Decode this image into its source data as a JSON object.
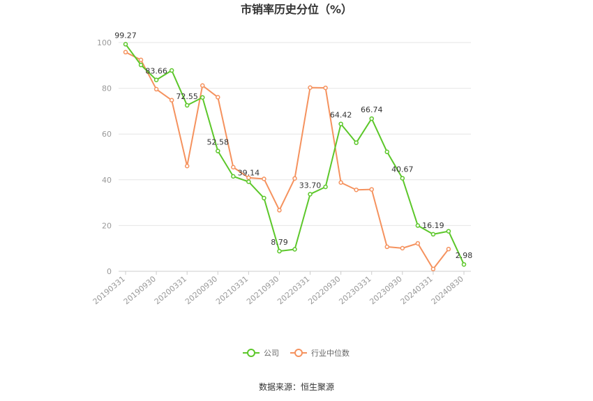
{
  "chart_data": {
    "type": "line",
    "title": "市销率历史分位（%）",
    "xlabel": "",
    "ylabel": "",
    "ylim": [
      0,
      100
    ],
    "yticks": [
      0,
      20,
      40,
      60,
      80,
      100
    ],
    "x": [
      "20190331",
      "20190630",
      "20190930",
      "20191231",
      "20200331",
      "20200630",
      "20200930",
      "20201231",
      "20210331",
      "20210630",
      "20210930",
      "20211231",
      "20220331",
      "20220630",
      "20220930",
      "20221231",
      "20230331",
      "20230630",
      "20230930",
      "20231231",
      "20240331",
      "20240630",
      "20240830"
    ],
    "x_tick_labels": [
      "20190331",
      "20190930",
      "20200331",
      "20200930",
      "20210331",
      "20210930",
      "20220331",
      "20220930",
      "20230331",
      "20230930",
      "20240331",
      "20240830"
    ],
    "grid": true,
    "legend_position": "bottom",
    "series": [
      {
        "name": "公司",
        "color": "#5cc72a",
        "values": [
          99.27,
          90.2,
          83.66,
          87.8,
          72.55,
          76.0,
          52.58,
          41.5,
          39.14,
          32.0,
          8.79,
          9.6,
          33.7,
          36.9,
          64.42,
          56.2,
          66.74,
          52.2,
          40.67,
          20.0,
          16.19,
          17.5,
          2.98
        ],
        "labels": [
          "99.27",
          null,
          "83.66",
          null,
          "72.55",
          null,
          "52.58",
          null,
          "39.14",
          null,
          "8.79",
          null,
          "33.70",
          null,
          "64.42",
          null,
          "66.74",
          null,
          "40.67",
          null,
          "16.19",
          null,
          "2.98"
        ]
      },
      {
        "name": "行业中位数",
        "color": "#f5925e",
        "values": [
          95.8,
          92.4,
          79.6,
          74.8,
          46.0,
          81.2,
          76.1,
          45.5,
          40.9,
          40.4,
          26.7,
          40.6,
          80.3,
          80.2,
          38.8,
          35.6,
          35.8,
          10.7,
          10.1,
          12.2,
          1.0,
          9.7,
          null
        ]
      }
    ]
  },
  "source": "数据来源：恒生聚源"
}
